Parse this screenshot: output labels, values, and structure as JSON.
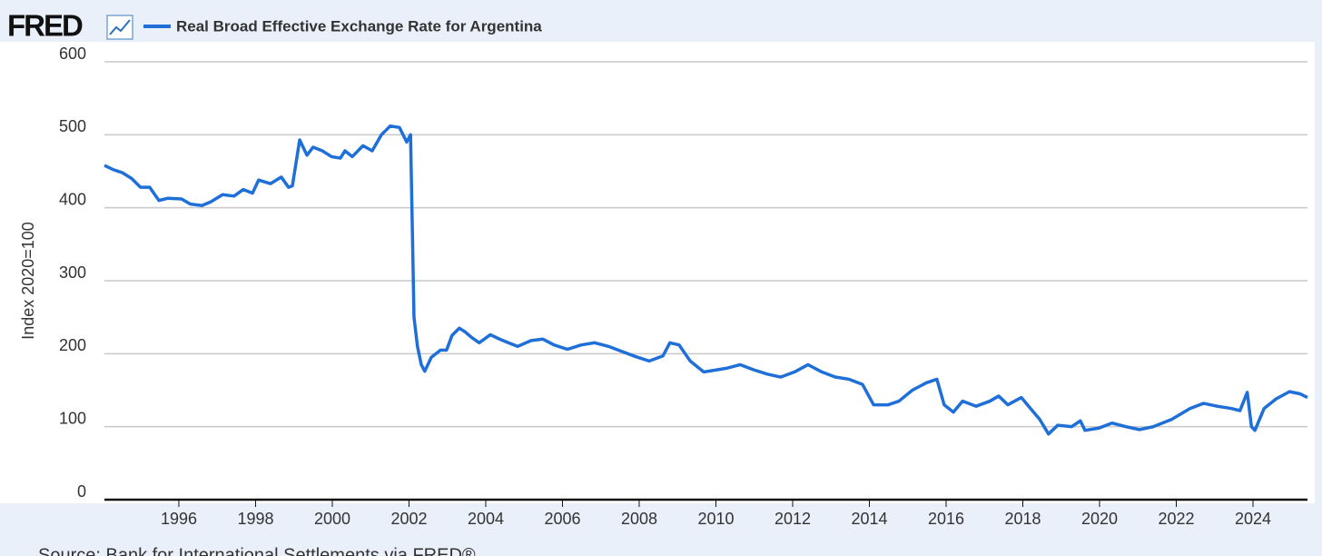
{
  "chart_data": {
    "type": "line",
    "brand": "FRED",
    "ylabel": "Index 2020=100",
    "source": "Source: Bank for International Settlements via FRED®",
    "x": [
      1994.06,
      1994.3,
      1994.53,
      1994.77,
      1995.0,
      1995.24,
      1995.48,
      1995.72,
      1996.07,
      1996.3,
      1996.6,
      1996.83,
      1997.14,
      1997.44,
      1997.68,
      1997.92,
      1998.08,
      1998.39,
      1998.67,
      1998.86,
      1998.96,
      1999.15,
      1999.34,
      1999.5,
      1999.74,
      1999.98,
      2000.21,
      2000.33,
      2000.52,
      2000.8,
      2001.04,
      2001.28,
      2001.51,
      2001.75,
      2001.94,
      2002.04,
      2002.13,
      2002.22,
      2002.32,
      2002.41,
      2002.58,
      2002.82,
      2002.98,
      2003.12,
      2003.31,
      2003.46,
      2003.64,
      2003.83,
      2004.12,
      2004.36,
      2004.59,
      2004.83,
      2005.18,
      2005.49,
      2005.78,
      2006.13,
      2006.49,
      2006.84,
      2007.2,
      2007.55,
      2007.91,
      2008.26,
      2008.62,
      2008.8,
      2009.04,
      2009.33,
      2009.68,
      2010.04,
      2010.27,
      2010.63,
      2010.98,
      2011.34,
      2011.69,
      2012.05,
      2012.4,
      2012.76,
      2013.11,
      2013.47,
      2013.82,
      2014.11,
      2014.49,
      2014.77,
      2015.12,
      2015.48,
      2015.76,
      2015.95,
      2016.19,
      2016.43,
      2016.78,
      2017.14,
      2017.37,
      2017.61,
      2017.96,
      2018.2,
      2018.44,
      2018.67,
      2018.91,
      2019.27,
      2019.5,
      2019.62,
      2019.98,
      2020.33,
      2020.69,
      2021.04,
      2021.4,
      2021.88,
      2022.36,
      2022.71,
      2023.07,
      2023.43,
      2023.66,
      2023.85,
      2023.96,
      2024.05,
      2024.29,
      2024.6,
      2024.95,
      2025.23,
      2025.42
    ],
    "series": [
      {
        "name": "Real Broad Effective Exchange Rate for Argentina",
        "color": "#1f6fd8",
        "values": [
          458,
          452,
          448,
          440,
          428,
          428,
          410,
          413,
          412,
          405,
          403,
          408,
          418,
          416,
          425,
          420,
          438,
          433,
          442,
          428,
          430,
          493,
          472,
          483,
          478,
          470,
          468,
          478,
          470,
          485,
          478,
          500,
          512,
          510,
          490,
          500,
          250,
          210,
          185,
          176,
          195,
          205,
          205,
          225,
          235,
          230,
          222,
          215,
          226,
          220,
          215,
          210,
          218,
          220,
          212,
          206,
          212,
          215,
          210,
          203,
          196,
          190,
          197,
          215,
          212,
          190,
          175,
          178,
          180,
          185,
          178,
          172,
          168,
          175,
          185,
          175,
          168,
          165,
          158,
          130,
          130,
          135,
          150,
          160,
          165,
          130,
          120,
          135,
          128,
          135,
          142,
          130,
          140,
          125,
          110,
          90,
          102,
          100,
          108,
          95,
          98,
          105,
          100,
          96,
          100,
          110,
          125,
          132,
          128,
          125,
          122,
          147,
          100,
          95,
          125,
          138,
          148,
          145,
          140
        ]
      }
    ],
    "xlim": [
      1994.06,
      2025.42
    ],
    "xticks": [
      1996,
      1998,
      2000,
      2002,
      2004,
      2006,
      2008,
      2010,
      2012,
      2014,
      2016,
      2018,
      2020,
      2022,
      2024
    ],
    "ylim": [
      0,
      600
    ],
    "yticks": [
      0,
      100,
      200,
      300,
      400,
      500,
      600
    ],
    "grid": true
  }
}
